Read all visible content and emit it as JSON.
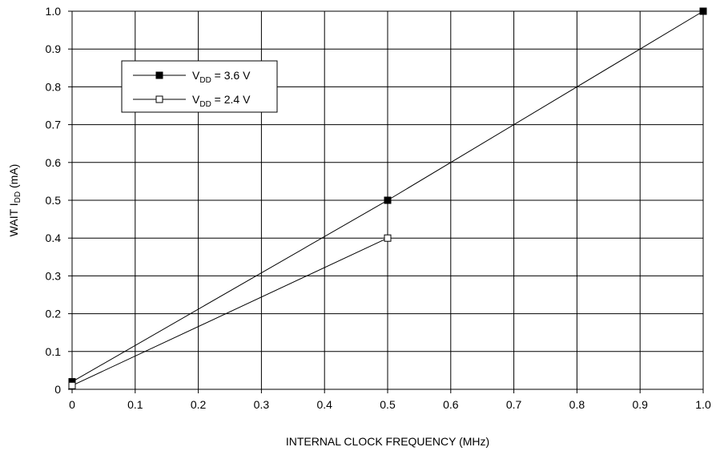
{
  "chart_data": {
    "type": "line",
    "title": "",
    "xlabel": "INTERNAL CLOCK FREQUENCY (MHz)",
    "ylabel": {
      "main": "WAIT I",
      "sub": "DD",
      "unit": " (mA)"
    },
    "xlim": [
      0,
      1.0
    ],
    "ylim": [
      0,
      1.0
    ],
    "x_ticks": [
      "0",
      "0.1",
      "0.2",
      "0.3",
      "0.4",
      "0.5",
      "0.6",
      "0.7",
      "0.8",
      "0.9",
      "1.0"
    ],
    "y_ticks": [
      "0",
      "0.1",
      "0.2",
      "0.3",
      "0.4",
      "0.5",
      "0.6",
      "0.7",
      "0.8",
      "0.9",
      "1.0"
    ],
    "grid": true,
    "legend_position": "top-left",
    "series": [
      {
        "legend": {
          "main": "V",
          "sub": "DD",
          "rest": " = 3.6 V"
        },
        "marker": "filled-square",
        "color": "#000000",
        "x": [
          0,
          0.5,
          1.0
        ],
        "y": [
          0.02,
          0.5,
          1.0
        ]
      },
      {
        "legend": {
          "main": "V",
          "sub": "DD",
          "rest": " = 2.4 V"
        },
        "marker": "open-square",
        "color": "#000000",
        "x": [
          0,
          0.5
        ],
        "y": [
          0.01,
          0.4
        ]
      }
    ]
  }
}
